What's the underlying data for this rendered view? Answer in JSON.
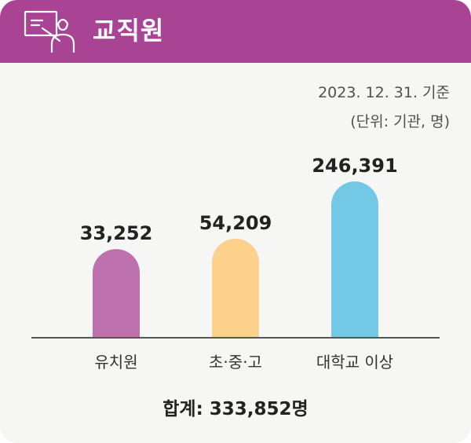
{
  "header": {
    "title": "교직원",
    "icon": "teacher-at-board-icon"
  },
  "notes": {
    "date": "2023. 12. 31. 기준",
    "unit": "(단위: 기관, 명)"
  },
  "chart_data": {
    "type": "bar",
    "categories": [
      "유치원",
      "초·중·고",
      "대학교 이상"
    ],
    "values": [
      33252,
      54209,
      246391
    ],
    "value_labels": [
      "33,252",
      "54,209",
      "246,391"
    ],
    "colors": [
      "#bd72ae",
      "#fbd18b",
      "#73c9e5"
    ],
    "ylim": [
      0,
      250000
    ],
    "grid": false,
    "legend": "none"
  },
  "total": "합계: 333,852명",
  "colors": {
    "header_bg": "#a94394",
    "card_bg": "#f6f6f4",
    "axis": "#555555"
  }
}
